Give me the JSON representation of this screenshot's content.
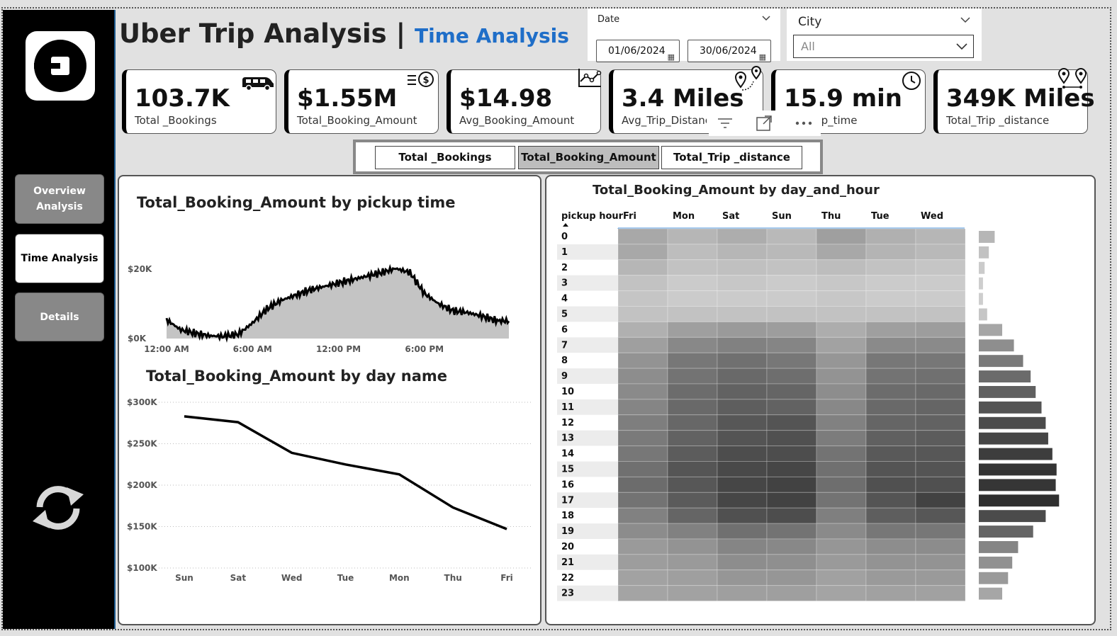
{
  "sidebar": {
    "nav": [
      {
        "label": "Overview Analysis",
        "state": "inactive"
      },
      {
        "label": "Time Analysis",
        "state": "active"
      },
      {
        "label": "Details",
        "state": "inactive"
      }
    ],
    "logo_icon": "uber-logo-icon",
    "refresh_icon": "refresh-icon"
  },
  "header": {
    "title": "Uber Trip Analysis |",
    "subtitle": "Time Analysis"
  },
  "filters": {
    "date": {
      "label": "Date",
      "from": "01/06/2024",
      "to": "30/06/2024"
    },
    "city": {
      "label": "City",
      "value": "All"
    }
  },
  "kpis": [
    {
      "value": "103.7K",
      "label": "Total _Bookings",
      "icon": "van-icon"
    },
    {
      "value": "$1.55M",
      "label": "Total_Booking_Amount",
      "icon": "dollar-list-icon"
    },
    {
      "value": "$14.98",
      "label": "Avg_Booking_Amount",
      "icon": "trend-chart-icon"
    },
    {
      "value": "3.4 Miles",
      "label": "Avg_Trip_Distance",
      "icon": "route-pins-icon"
    },
    {
      "value": "15.9 min",
      "label": "Avg_Trip_time",
      "icon": "clock-icon"
    },
    {
      "value": "349K Miles",
      "label": "Total_Trip _distance",
      "icon": "two-pins-icon"
    }
  ],
  "metric_toggle": {
    "options": [
      "Total _Bookings",
      "Total_Booking_Amount",
      "Total_Trip _distance"
    ],
    "selected": "Total_Booking_Amount"
  },
  "chart_data": [
    {
      "type": "area",
      "title": "Total_Booking_Amount by pickup time",
      "x_ticks": [
        "12:00 AM",
        "6:00 AM",
        "12:00 PM",
        "6:00 PM"
      ],
      "y_ticks": [
        "$0K",
        "$20K"
      ],
      "ylim": [
        0,
        20000
      ],
      "x_unit": "hour of day",
      "x": [
        0,
        1,
        2,
        3,
        4,
        5,
        6,
        7,
        8,
        9,
        10,
        11,
        12,
        13,
        14,
        15,
        16,
        17,
        18,
        19,
        20,
        21,
        22,
        23,
        23.9
      ],
      "values": [
        5400,
        2500,
        1500,
        800,
        600,
        1200,
        4500,
        8500,
        11000,
        12500,
        14000,
        15000,
        16000,
        17000,
        18000,
        19000,
        20200,
        19000,
        13000,
        10000,
        8000,
        7500,
        6500,
        5200,
        5000
      ],
      "color": "#000000",
      "fill": "#c4c4c4"
    },
    {
      "type": "line",
      "title": "Total_Booking_Amount by day name",
      "categories": [
        "Sun",
        "Sat",
        "Wed",
        "Tue",
        "Mon",
        "Thu",
        "Fri"
      ],
      "values": [
        283000,
        276000,
        239000,
        225000,
        213000,
        173000,
        147000
      ],
      "y_ticks": [
        "$100K",
        "$150K",
        "$200K",
        "$250K",
        "$300K"
      ],
      "ylim": [
        100000,
        300000
      ],
      "grid": true,
      "color": "#000000"
    },
    {
      "type": "heatmap",
      "title": "Total_Booking_Amount by day_and_hour",
      "row_header": "pickup hour",
      "columns": [
        "Fri",
        "Mon",
        "Sat",
        "Sun",
        "Thu",
        "Tue",
        "Wed"
      ],
      "rows": [
        0,
        1,
        2,
        3,
        4,
        5,
        6,
        7,
        8,
        9,
        10,
        11,
        12,
        13,
        14,
        15,
        16,
        17,
        18,
        19,
        20,
        21,
        22,
        23
      ],
      "intensity_scale": "0 to 1",
      "values": [
        [
          0.3,
          0.22,
          0.27,
          0.2,
          0.35,
          0.25,
          0.22
        ],
        [
          0.3,
          0.18,
          0.22,
          0.2,
          0.3,
          0.23,
          0.2
        ],
        [
          0.22,
          0.15,
          0.16,
          0.15,
          0.18,
          0.15,
          0.13
        ],
        [
          0.15,
          0.1,
          0.12,
          0.1,
          0.12,
          0.1,
          0.1
        ],
        [
          0.13,
          0.1,
          0.1,
          0.1,
          0.12,
          0.1,
          0.1
        ],
        [
          0.15,
          0.15,
          0.15,
          0.15,
          0.15,
          0.15,
          0.15
        ],
        [
          0.25,
          0.35,
          0.38,
          0.36,
          0.27,
          0.35,
          0.36
        ],
        [
          0.35,
          0.48,
          0.52,
          0.5,
          0.33,
          0.47,
          0.47
        ],
        [
          0.42,
          0.58,
          0.62,
          0.58,
          0.4,
          0.58,
          0.58
        ],
        [
          0.45,
          0.6,
          0.66,
          0.63,
          0.42,
          0.6,
          0.62
        ],
        [
          0.47,
          0.64,
          0.7,
          0.68,
          0.45,
          0.64,
          0.66
        ],
        [
          0.5,
          0.66,
          0.72,
          0.7,
          0.48,
          0.66,
          0.68
        ],
        [
          0.54,
          0.67,
          0.76,
          0.78,
          0.52,
          0.68,
          0.7
        ],
        [
          0.56,
          0.7,
          0.78,
          0.8,
          0.55,
          0.71,
          0.73
        ],
        [
          0.58,
          0.73,
          0.82,
          0.82,
          0.6,
          0.75,
          0.76
        ],
        [
          0.62,
          0.77,
          0.84,
          0.86,
          0.62,
          0.78,
          0.78
        ],
        [
          0.64,
          0.76,
          0.86,
          0.88,
          0.63,
          0.8,
          0.8
        ],
        [
          0.6,
          0.74,
          0.86,
          0.88,
          0.6,
          0.78,
          0.88
        ],
        [
          0.52,
          0.68,
          0.8,
          0.82,
          0.53,
          0.72,
          0.76
        ],
        [
          0.46,
          0.52,
          0.62,
          0.6,
          0.47,
          0.58,
          0.58
        ],
        [
          0.38,
          0.42,
          0.5,
          0.48,
          0.4,
          0.45,
          0.46
        ],
        [
          0.36,
          0.38,
          0.45,
          0.44,
          0.38,
          0.42,
          0.42
        ],
        [
          0.33,
          0.35,
          0.4,
          0.4,
          0.34,
          0.38,
          0.38
        ],
        [
          0.32,
          0.33,
          0.35,
          0.35,
          0.32,
          0.34,
          0.34
        ]
      ],
      "row_totals": [
        0.19,
        0.12,
        0.07,
        0.05,
        0.05,
        0.1,
        0.28,
        0.42,
        0.53,
        0.62,
        0.68,
        0.75,
        0.8,
        0.83,
        0.88,
        0.93,
        0.92,
        0.96,
        0.8,
        0.65,
        0.47,
        0.4,
        0.35,
        0.28
      ]
    }
  ]
}
